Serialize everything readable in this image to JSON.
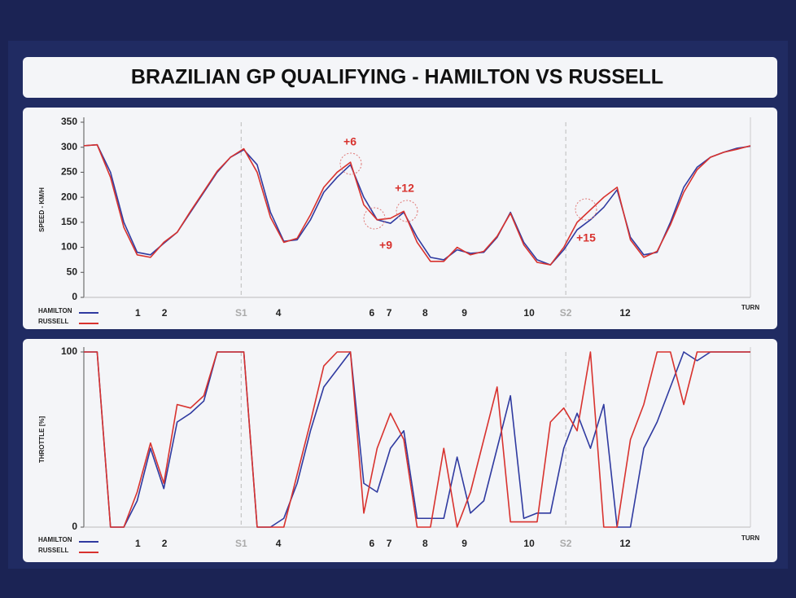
{
  "title": "BRAZILIAN GP QUALIFYING - HAMILTON VS RUSSELL",
  "chart_data": [
    {
      "type": "line",
      "y_label": "SPEED - KM/H",
      "x_label": "TURN",
      "xlim": [
        0,
        100
      ],
      "ylim": [
        0,
        350
      ],
      "yticks": [
        0,
        50,
        100,
        150,
        200,
        250,
        300,
        350
      ],
      "xticks": [
        {
          "value": 8.1,
          "label": "1"
        },
        {
          "value": 12.1,
          "label": "2"
        },
        {
          "value": 23.6,
          "label": "S1"
        },
        {
          "value": 29.2,
          "label": "4"
        },
        {
          "value": 43.2,
          "label": "6"
        },
        {
          "value": 45.8,
          "label": "7"
        },
        {
          "value": 51.2,
          "label": "8"
        },
        {
          "value": 57.1,
          "label": "9"
        },
        {
          "value": 66.8,
          "label": "10"
        },
        {
          "value": 72.3,
          "label": "S2"
        },
        {
          "value": 81.2,
          "label": "12"
        }
      ],
      "annotations": [
        "+6",
        "+12",
        "+9",
        "+15"
      ],
      "x": [
        0,
        2,
        4,
        6,
        8,
        10,
        12,
        14,
        16,
        18,
        20,
        22,
        24,
        26,
        28,
        30,
        32,
        34,
        36,
        38,
        40,
        42,
        44,
        46,
        48,
        50,
        52,
        54,
        56,
        58,
        60,
        62,
        64,
        66,
        68,
        70,
        72,
        74,
        76,
        78,
        80,
        82,
        84,
        86,
        88,
        90,
        92,
        94,
        96,
        98,
        100
      ],
      "series": [
        {
          "name": "HAMILTON",
          "color": "#2f3aa0",
          "values": [
            303,
            305,
            250,
            150,
            90,
            85,
            108,
            130,
            170,
            210,
            250,
            280,
            295,
            265,
            170,
            112,
            115,
            155,
            210,
            240,
            265,
            200,
            155,
            148,
            170,
            120,
            80,
            75,
            95,
            88,
            90,
            120,
            170,
            110,
            75,
            65,
            95,
            135,
            155,
            180,
            215,
            120,
            85,
            90,
            150,
            220,
            260,
            280,
            290,
            298,
            302
          ]
        },
        {
          "name": "RUSSELL",
          "color": "#d8322e",
          "values": [
            303,
            305,
            240,
            140,
            85,
            80,
            110,
            130,
            172,
            212,
            252,
            280,
            297,
            250,
            160,
            110,
            118,
            165,
            220,
            250,
            270,
            185,
            155,
            158,
            172,
            110,
            72,
            72,
            100,
            85,
            92,
            122,
            168,
            105,
            70,
            65,
            100,
            150,
            175,
            200,
            220,
            115,
            80,
            92,
            145,
            210,
            255,
            280,
            290,
            296,
            303
          ]
        }
      ]
    },
    {
      "type": "line",
      "y_label": "THROTTLE [%]",
      "x_label": "TURN",
      "xlim": [
        0,
        100
      ],
      "ylim": [
        0,
        100
      ],
      "yticks": [
        0,
        100
      ],
      "xticks": [
        {
          "value": 8.1,
          "label": "1"
        },
        {
          "value": 12.1,
          "label": "2"
        },
        {
          "value": 23.6,
          "label": "S1"
        },
        {
          "value": 29.2,
          "label": "4"
        },
        {
          "value": 43.2,
          "label": "6"
        },
        {
          "value": 45.8,
          "label": "7"
        },
        {
          "value": 51.2,
          "label": "8"
        },
        {
          "value": 57.1,
          "label": "9"
        },
        {
          "value": 66.8,
          "label": "10"
        },
        {
          "value": 72.3,
          "label": "S2"
        },
        {
          "value": 81.2,
          "label": "12"
        }
      ],
      "x": [
        0,
        2,
        4,
        6,
        8,
        10,
        12,
        14,
        16,
        18,
        20,
        22,
        24,
        26,
        28,
        30,
        32,
        34,
        36,
        38,
        40,
        42,
        44,
        46,
        48,
        50,
        52,
        54,
        56,
        58,
        60,
        62,
        64,
        66,
        68,
        70,
        72,
        74,
        76,
        78,
        80,
        82,
        84,
        86,
        88,
        90,
        92,
        94,
        96,
        98,
        100
      ],
      "series": [
        {
          "name": "HAMILTON",
          "color": "#2f3aa0",
          "values": [
            100,
            100,
            0,
            0,
            15,
            45,
            22,
            60,
            65,
            72,
            100,
            100,
            100,
            0,
            0,
            5,
            25,
            55,
            80,
            90,
            100,
            25,
            20,
            45,
            55,
            5,
            5,
            5,
            40,
            8,
            15,
            45,
            75,
            5,
            8,
            8,
            45,
            65,
            45,
            70,
            0,
            0,
            45,
            60,
            80,
            100,
            95,
            100,
            100,
            100,
            100
          ]
        },
        {
          "name": "RUSSELL",
          "color": "#d8322e",
          "values": [
            100,
            100,
            0,
            0,
            20,
            48,
            25,
            70,
            68,
            75,
            100,
            100,
            100,
            0,
            0,
            0,
            30,
            60,
            92,
            100,
            100,
            8,
            45,
            65,
            50,
            0,
            0,
            45,
            0,
            20,
            50,
            80,
            3,
            3,
            3,
            60,
            68,
            55,
            100,
            0,
            0,
            50,
            70,
            100,
            100,
            70,
            100,
            100,
            100,
            100,
            100
          ]
        }
      ]
    }
  ]
}
